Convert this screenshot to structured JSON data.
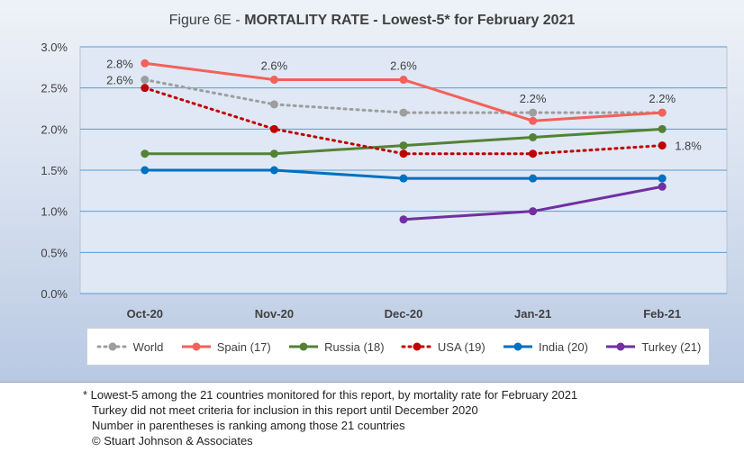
{
  "chart_data": {
    "type": "line",
    "title_prefix": "Figure 6E  - ",
    "title_bold": "MORTALITY RATE - Lowest-5* for February 2021",
    "categories": [
      "Oct-20",
      "Nov-20",
      "Dec-20",
      "Jan-21",
      "Feb-21"
    ],
    "ylim": [
      0,
      3.0
    ],
    "yticks": [
      "0.0%",
      "0.5%",
      "1.0%",
      "1.5%",
      "2.0%",
      "2.5%",
      "3.0%"
    ],
    "grid": true,
    "legend_placement": "bottom",
    "series": [
      {
        "name": "World",
        "color": "#9e9e9e",
        "dash": true,
        "values": [
          2.6,
          2.3,
          2.2,
          2.2,
          2.2
        ]
      },
      {
        "name": "Spain (17)",
        "color": "#f4605a",
        "dash": false,
        "values": [
          2.8,
          2.6,
          2.6,
          2.1,
          2.2
        ]
      },
      {
        "name": "Russia (18)",
        "color": "#548235",
        "dash": false,
        "values": [
          1.7,
          1.7,
          1.8,
          1.9,
          2.0
        ]
      },
      {
        "name": "USA (19)",
        "color": "#c00000",
        "dash": true,
        "values": [
          2.5,
          2.0,
          1.7,
          1.7,
          1.8
        ]
      },
      {
        "name": "India (20)",
        "color": "#0070c0",
        "dash": false,
        "values": [
          1.5,
          1.5,
          1.4,
          1.4,
          1.4
        ]
      },
      {
        "name": "Turkey (21)",
        "color": "#7030a0",
        "dash": false,
        "values": [
          null,
          null,
          0.9,
          1.0,
          1.3
        ]
      }
    ],
    "data_labels": [
      {
        "text": "2.8%",
        "series": "Spain (17)",
        "index": 0
      },
      {
        "text": "2.6%",
        "series": "World",
        "index": 0
      },
      {
        "text": "2.6%",
        "series": "Spain (17)",
        "index": 1
      },
      {
        "text": "2.6%",
        "series": "Spain (17)",
        "index": 2
      },
      {
        "text": "2.2%",
        "series": "World",
        "index": 3
      },
      {
        "text": "2.2%",
        "series": "Spain (17)",
        "index": 4
      },
      {
        "text": "1.8%",
        "series": "USA (19)",
        "index": 4
      }
    ]
  },
  "footnotes": [
    "* Lowest-5 among the 21 countries monitored for this report, by mortality rate for February 2021",
    "Turkey did not meet criteria for inclusion in this report until December 2020",
    "Number in parentheses is ranking among those 21 countries",
    "© Stuart Johnson & Associates"
  ]
}
